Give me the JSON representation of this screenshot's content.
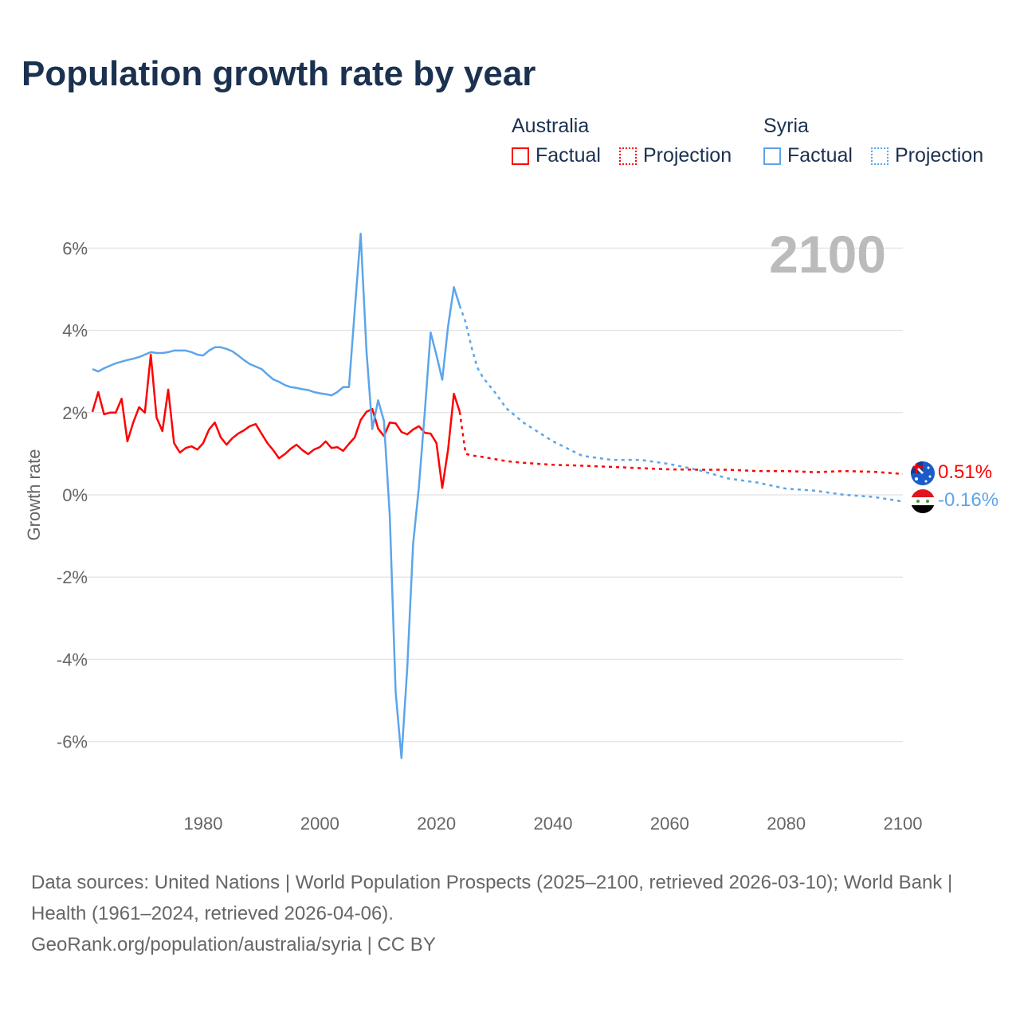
{
  "title": "Population growth rate by year",
  "legend": [
    {
      "country": "Australia",
      "factual_label": "Factual",
      "projection_label": "Projection",
      "color": "#ff0000"
    },
    {
      "country": "Syria",
      "factual_label": "Factual",
      "projection_label": "Projection",
      "color": "#5ca5ea"
    }
  ],
  "footer": {
    "sources": "Data sources: United Nations | World Population Prospects (2025–2100, retrieved 2026-03-10); World Bank | Health (1961–2024, retrieved 2026-04-06).",
    "credit": "GeoRank.org/population/australia/syria | CC BY"
  },
  "chart_data": {
    "type": "line",
    "title": "Population growth rate by year",
    "xlabel": "",
    "ylabel": "Growth rate",
    "year_label": "2100",
    "xlim": [
      1961,
      2100
    ],
    "ylim": [
      -7,
      7
    ],
    "x_ticks": [
      1980,
      2000,
      2020,
      2040,
      2060,
      2080,
      2100
    ],
    "x_tick_labels": [
      "1980",
      "2000",
      "2020",
      "2040",
      "2060",
      "2080",
      "2100"
    ],
    "y_ticks": [
      -6,
      -4,
      -2,
      0,
      2,
      4,
      6
    ],
    "y_tick_labels": [
      "-6%",
      "-4%",
      "-2%",
      "0%",
      "2%",
      "4%",
      "6%"
    ],
    "grid": true,
    "series": [
      {
        "name": "Australia",
        "color": "#ff0000",
        "end_label": "0.51%",
        "factual": {
          "x": [
            1961,
            1962,
            1963,
            1964,
            1965,
            1966,
            1967,
            1968,
            1969,
            1970,
            1971,
            1972,
            1973,
            1974,
            1975,
            1976,
            1977,
            1978,
            1979,
            1980,
            1981,
            1982,
            1983,
            1984,
            1985,
            1986,
            1987,
            1988,
            1989,
            1990,
            1991,
            1992,
            1993,
            1994,
            1995,
            1996,
            1997,
            1998,
            1999,
            2000,
            2001,
            2002,
            2003,
            2004,
            2005,
            2006,
            2007,
            2008,
            2009,
            2010,
            2011,
            2012,
            2013,
            2014,
            2015,
            2016,
            2017,
            2018,
            2019,
            2020,
            2021,
            2022,
            2023,
            2024
          ],
          "y": [
            2.02,
            2.5,
            1.96,
            2.0,
            2.0,
            2.34,
            1.3,
            1.76,
            2.13,
            2.0,
            3.41,
            1.88,
            1.55,
            2.56,
            1.26,
            1.03,
            1.14,
            1.18,
            1.1,
            1.26,
            1.59,
            1.76,
            1.4,
            1.22,
            1.38,
            1.49,
            1.57,
            1.67,
            1.72,
            1.49,
            1.26,
            1.09,
            0.89,
            0.99,
            1.12,
            1.22,
            1.09,
            0.99,
            1.1,
            1.16,
            1.3,
            1.14,
            1.16,
            1.07,
            1.24,
            1.4,
            1.82,
            2.02,
            2.09,
            1.61,
            1.43,
            1.76,
            1.74,
            1.53,
            1.47,
            1.59,
            1.67,
            1.51,
            1.49,
            1.26,
            0.17,
            1.1,
            2.46,
            2.02
          ]
        },
        "projection": {
          "x": [
            2024,
            2025,
            2026,
            2028,
            2030,
            2032,
            2035,
            2040,
            2045,
            2050,
            2055,
            2060,
            2065,
            2070,
            2075,
            2080,
            2085,
            2090,
            2095,
            2100
          ],
          "y": [
            2.02,
            1.0,
            0.96,
            0.92,
            0.87,
            0.82,
            0.78,
            0.73,
            0.71,
            0.68,
            0.65,
            0.62,
            0.61,
            0.61,
            0.58,
            0.58,
            0.55,
            0.58,
            0.56,
            0.51
          ]
        }
      },
      {
        "name": "Syria",
        "color": "#5ca5ea",
        "end_label": "-0.16%",
        "factual": {
          "x": [
            1961,
            1962,
            1963,
            1964,
            1965,
            1966,
            1967,
            1968,
            1969,
            1970,
            1971,
            1972,
            1973,
            1974,
            1975,
            1976,
            1977,
            1978,
            1979,
            1980,
            1981,
            1982,
            1983,
            1984,
            1985,
            1986,
            1987,
            1988,
            1989,
            1990,
            1991,
            1992,
            1993,
            1994,
            1995,
            1996,
            1997,
            1998,
            1999,
            2000,
            2001,
            2002,
            2003,
            2004,
            2005,
            2006,
            2007,
            2008,
            2009,
            2010,
            2011,
            2012,
            2013,
            2014,
            2015,
            2016,
            2017,
            2018,
            2019,
            2020,
            2021,
            2022,
            2023,
            2024
          ],
          "y": [
            3.06,
            3.0,
            3.08,
            3.14,
            3.2,
            3.24,
            3.28,
            3.31,
            3.35,
            3.41,
            3.47,
            3.45,
            3.45,
            3.47,
            3.51,
            3.51,
            3.51,
            3.47,
            3.41,
            3.39,
            3.51,
            3.59,
            3.59,
            3.55,
            3.49,
            3.39,
            3.28,
            3.18,
            3.12,
            3.06,
            2.93,
            2.81,
            2.75,
            2.67,
            2.62,
            2.6,
            2.57,
            2.55,
            2.5,
            2.47,
            2.45,
            2.42,
            2.5,
            2.62,
            2.62,
            4.5,
            6.35,
            3.5,
            1.6,
            2.3,
            1.8,
            -0.5,
            -4.8,
            -6.4,
            -4.2,
            -1.2,
            0.2,
            2.0,
            3.95,
            3.4,
            2.8,
            4.1,
            5.05,
            4.6
          ]
        },
        "projection": {
          "x": [
            2024,
            2025,
            2026,
            2027,
            2028,
            2030,
            2032,
            2035,
            2040,
            2045,
            2050,
            2055,
            2060,
            2065,
            2070,
            2075,
            2080,
            2085,
            2090,
            2095,
            2100
          ],
          "y": [
            4.6,
            4.2,
            3.6,
            3.1,
            2.85,
            2.5,
            2.1,
            1.75,
            1.3,
            0.95,
            0.85,
            0.85,
            0.75,
            0.6,
            0.4,
            0.3,
            0.15,
            0.1,
            0.0,
            -0.05,
            -0.16
          ]
        }
      }
    ]
  }
}
